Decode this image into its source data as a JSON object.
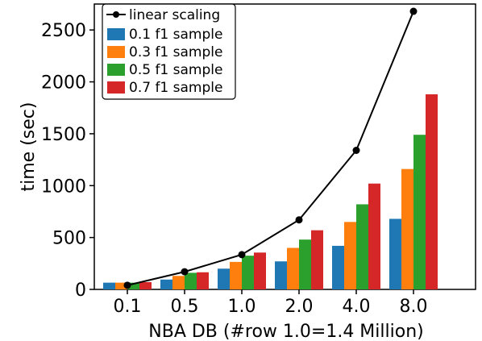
{
  "chart_data": {
    "type": "bar",
    "title": "",
    "xlabel": "NBA DB (#row 1.0=1.4 Million)",
    "ylabel": "time (sec)",
    "categories": [
      "0.1",
      "0.5",
      "1.0",
      "2.0",
      "4.0",
      "8.0"
    ],
    "yticks": [
      "0",
      "500",
      "1000",
      "1500",
      "2000",
      "2500"
    ],
    "ylim": [
      0,
      2750
    ],
    "grid": false,
    "legend_position": "top-left",
    "series": [
      {
        "name": "0.1 f1 sample",
        "color": "#1f77b4",
        "values": [
          65,
          95,
          200,
          270,
          420,
          680
        ]
      },
      {
        "name": "0.3 f1 sample",
        "color": "#ff7f0e",
        "values": [
          65,
          130,
          265,
          400,
          650,
          1160
        ]
      },
      {
        "name": "0.5 f1 sample",
        "color": "#2ca02c",
        "values": [
          65,
          160,
          325,
          480,
          820,
          1490
        ]
      },
      {
        "name": "0.7 f1 sample",
        "color": "#d62728",
        "values": [
          70,
          165,
          355,
          570,
          1020,
          1880
        ]
      }
    ],
    "line": {
      "name": "linear scaling",
      "color": "#000000",
      "values": [
        40,
        170,
        335,
        670,
        1340,
        2680
      ]
    }
  }
}
